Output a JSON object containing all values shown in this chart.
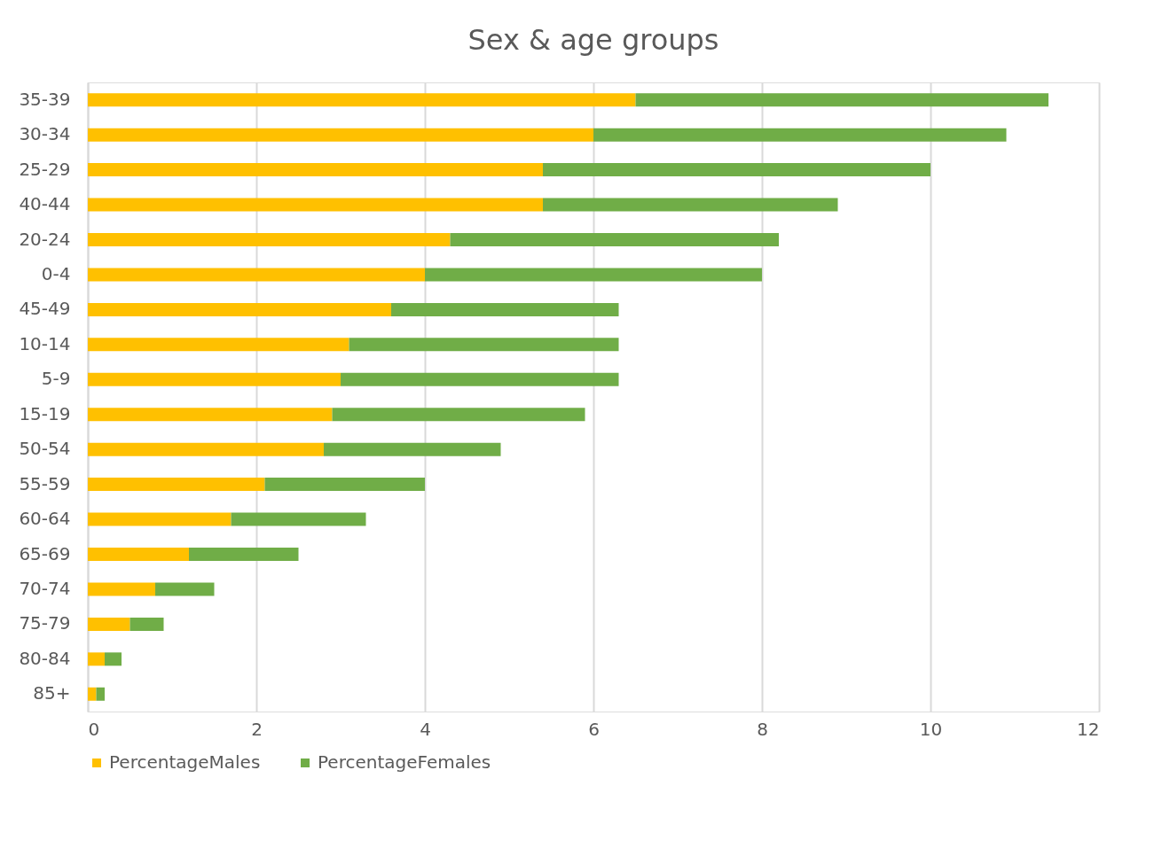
{
  "chart_data": {
    "type": "bar",
    "orientation": "horizontal",
    "stacked": true,
    "title": "Sex & age groups",
    "categories": [
      "35-39",
      "30-34",
      "25-29",
      "40-44",
      "20-24",
      "0-4",
      "45-49",
      "10-14",
      "5-9",
      "15-19",
      "50-54",
      "55-59",
      "60-64",
      "65-69",
      "70-74",
      "75-79",
      "80-84",
      "85+"
    ],
    "series": [
      {
        "name": "PercentageMales",
        "color": "#ffc000",
        "values": [
          6.5,
          6.0,
          5.4,
          5.4,
          4.3,
          4.0,
          3.6,
          3.1,
          3.0,
          2.9,
          2.8,
          2.1,
          1.7,
          1.2,
          0.8,
          0.5,
          0.2,
          0.1
        ]
      },
      {
        "name": "PercentageFemales",
        "color": "#70ad47",
        "values": [
          4.9,
          4.9,
          4.6,
          3.5,
          3.9,
          4.0,
          2.7,
          3.2,
          3.3,
          3.0,
          2.1,
          1.9,
          1.6,
          1.3,
          0.7,
          0.4,
          0.2,
          0.1
        ]
      }
    ],
    "xlim": [
      0,
      12
    ],
    "xticks": [
      0,
      2,
      4,
      6,
      8,
      10,
      12
    ],
    "grid": "x",
    "legend": "bottom"
  }
}
